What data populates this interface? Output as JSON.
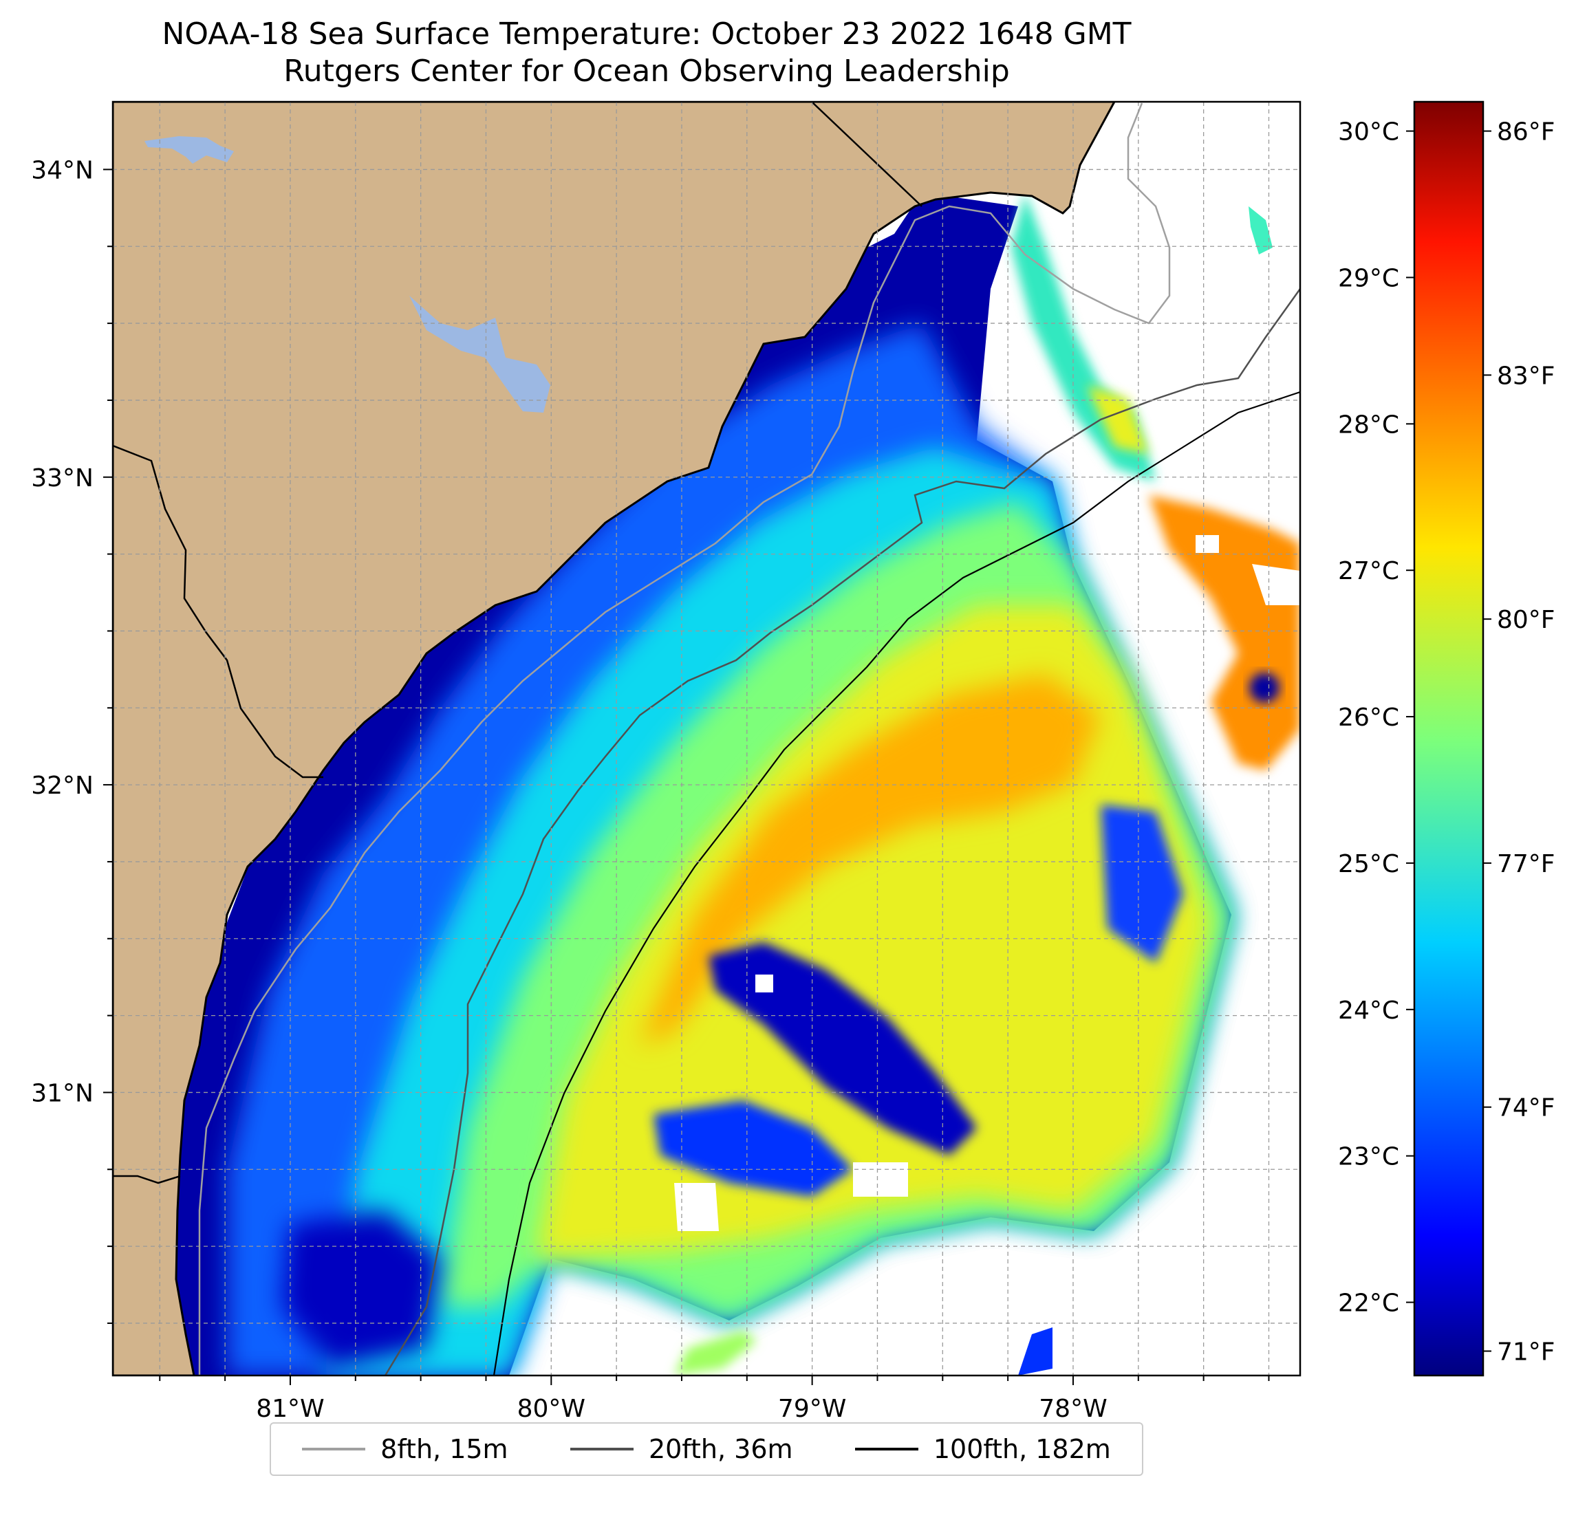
{
  "title": {
    "line1": "NOAA-18 Sea Surface Temperature: October 23 2022 1648 GMT",
    "line2": "Rutgers Center for Ocean Observing Leadership"
  },
  "map": {
    "lon_range": [
      -81.68,
      -77.13
    ],
    "lat_range": [
      30.08,
      34.22
    ],
    "lon_ticks": [
      {
        "value": -81,
        "label": "81°W"
      },
      {
        "value": -80,
        "label": "80°W"
      },
      {
        "value": -79,
        "label": "79°W"
      },
      {
        "value": -78,
        "label": "78°W"
      }
    ],
    "lat_ticks": [
      {
        "value": 31,
        "label": "31°N"
      },
      {
        "value": 32,
        "label": "32°N"
      },
      {
        "value": 33,
        "label": "33°N"
      },
      {
        "value": 34,
        "label": "34°N"
      }
    ],
    "land_color": "#d2b48c",
    "lake_color": "#9cb8e3"
  },
  "colorbar": {
    "colormap": "jet",
    "celsius_range": [
      21.5,
      30.2
    ],
    "celsius_ticks": [
      {
        "value": 22,
        "label": "22°C"
      },
      {
        "value": 23,
        "label": "23°C"
      },
      {
        "value": 24,
        "label": "24°C"
      },
      {
        "value": 25,
        "label": "25°C"
      },
      {
        "value": 26,
        "label": "26°C"
      },
      {
        "value": 27,
        "label": "27°C"
      },
      {
        "value": 28,
        "label": "28°C"
      },
      {
        "value": 29,
        "label": "29°C"
      },
      {
        "value": 30,
        "label": "30°C"
      }
    ],
    "fahrenheit_ticks": [
      {
        "value": 71,
        "label": "71°F"
      },
      {
        "value": 74,
        "label": "74°F"
      },
      {
        "value": 77,
        "label": "77°F"
      },
      {
        "value": 80,
        "label": "80°F"
      },
      {
        "value": 83,
        "label": "83°F"
      },
      {
        "value": 86,
        "label": "86°F"
      }
    ]
  },
  "legend": {
    "items": [
      {
        "label": "8fth, 15m",
        "color": "#a0a0a0"
      },
      {
        "label": "20fth, 36m",
        "color": "#505050"
      },
      {
        "label": "100fth, 182m",
        "color": "#000000"
      }
    ]
  }
}
